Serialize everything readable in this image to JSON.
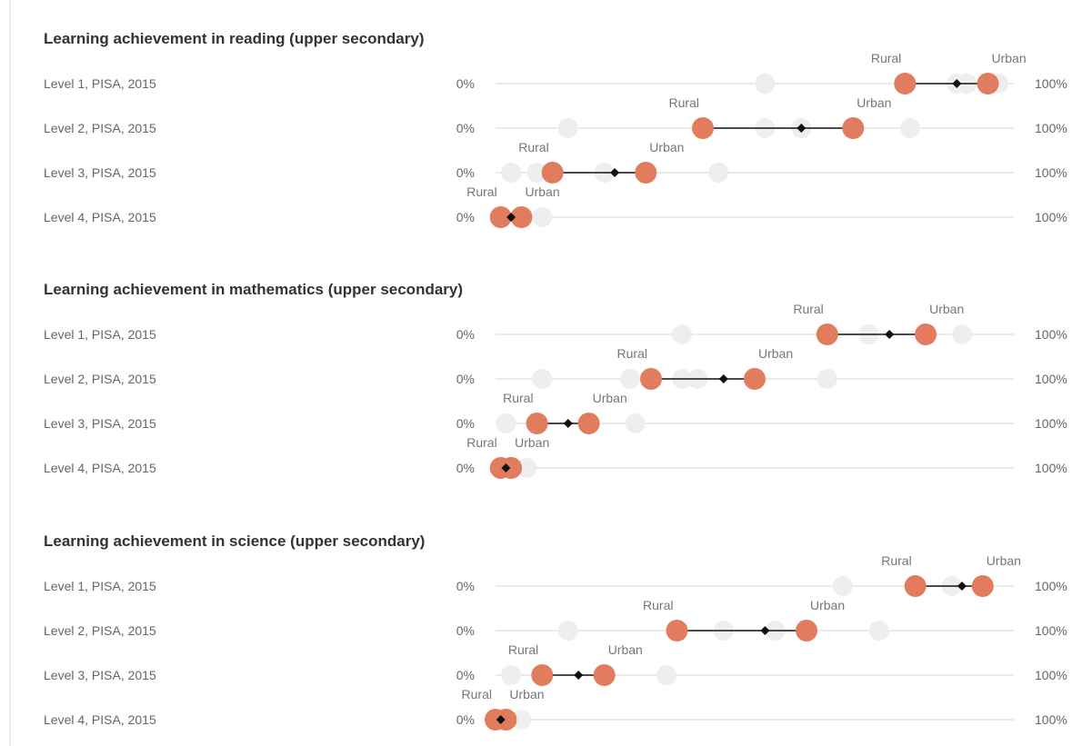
{
  "chart_data": [
    {
      "type": "dumbbell",
      "title": "Learning achievement in reading (upper secondary)",
      "x_min_label": "0%",
      "x_max_label": "100%",
      "xlim": [
        0,
        100
      ],
      "series_labels": {
        "low": "Rural",
        "high": "Urban"
      },
      "rows": [
        {
          "label": "Level 1, PISA, 2015",
          "rural": 79,
          "avg": 89,
          "urban": 95,
          "background": [
            52,
            89,
            91,
            97
          ]
        },
        {
          "label": "Level 2, PISA, 2015",
          "rural": 40,
          "avg": 59,
          "urban": 69,
          "background": [
            14,
            52,
            59,
            80
          ]
        },
        {
          "label": "Level 3, PISA, 2015",
          "rural": 11,
          "avg": 23,
          "urban": 29,
          "background": [
            3,
            8,
            21,
            43
          ]
        },
        {
          "label": "Level 4, PISA, 2015",
          "rural": 1,
          "avg": 3,
          "urban": 5,
          "background": [
            9
          ]
        }
      ]
    },
    {
      "type": "dumbbell",
      "title": "Learning achievement in mathematics (upper secondary)",
      "x_min_label": "0%",
      "x_max_label": "100%",
      "xlim": [
        0,
        100
      ],
      "series_labels": {
        "low": "Rural",
        "high": "Urban"
      },
      "rows": [
        {
          "label": "Level 1, PISA, 2015",
          "rural": 64,
          "avg": 76,
          "urban": 83,
          "background": [
            36,
            72,
            90
          ]
        },
        {
          "label": "Level 2, PISA, 2015",
          "rural": 30,
          "avg": 44,
          "urban": 50,
          "background": [
            9,
            26,
            36,
            39,
            64
          ]
        },
        {
          "label": "Level 3, PISA, 2015",
          "rural": 8,
          "avg": 14,
          "urban": 18,
          "background": [
            2,
            27
          ]
        },
        {
          "label": "Level 4, PISA, 2015",
          "rural": 1,
          "avg": 2,
          "urban": 3,
          "background": [
            6
          ]
        }
      ]
    },
    {
      "type": "dumbbell",
      "title": "Learning achievement in science (upper secondary)",
      "x_min_label": "0%",
      "x_max_label": "100%",
      "xlim": [
        0,
        100
      ],
      "series_labels": {
        "low": "Rural",
        "high": "Urban"
      },
      "rows": [
        {
          "label": "Level 1, PISA, 2015",
          "rural": 81,
          "avg": 90,
          "urban": 94,
          "background": [
            67,
            88
          ]
        },
        {
          "label": "Level 2, PISA, 2015",
          "rural": 35,
          "avg": 52,
          "urban": 60,
          "background": [
            14,
            44,
            54,
            74
          ]
        },
        {
          "label": "Level 3, PISA, 2015",
          "rural": 9,
          "avg": 16,
          "urban": 21,
          "background": [
            3,
            33
          ]
        },
        {
          "label": "Level 4, PISA, 2015",
          "rural": 0,
          "avg": 1,
          "urban": 2,
          "background": [
            5
          ]
        }
      ]
    }
  ],
  "colors": {
    "dot": "#e27c5e",
    "avg": "#111111",
    "connector": "#333333",
    "axis": "#e4e4e4",
    "ghost_dot": "#eeeeee"
  }
}
